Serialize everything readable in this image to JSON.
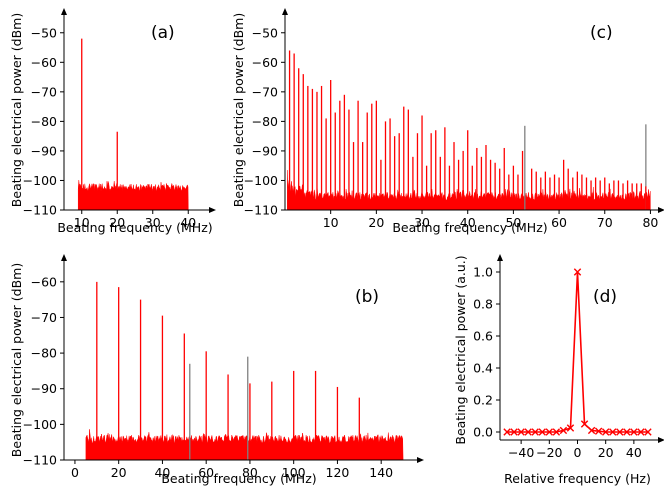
{
  "colors": {
    "trace": "#ff0000",
    "marker_line": "#808080",
    "axis": "#000000"
  },
  "chart_data": [
    {
      "id": "a",
      "type": "line",
      "panel_label": "(a)",
      "xlabel": "Beating frequency (MHz)",
      "ylabel": "Beating electrical power (dBm)",
      "xlim": [
        5,
        45
      ],
      "ylim": [
        -110,
        -45
      ],
      "xticks": [
        10,
        20,
        30,
        40
      ],
      "yticks": [
        -110,
        -100,
        -90,
        -80,
        -70,
        -60,
        -50
      ],
      "noise": {
        "x_start": 9,
        "x_end": 40,
        "level_top": -101
      },
      "series": [
        {
          "name": "peaks",
          "x": [
            10,
            20
          ],
          "y": [
            -52,
            -83.5
          ]
        }
      ],
      "gray_lines": []
    },
    {
      "id": "c",
      "type": "line",
      "panel_label": "(c)",
      "xlabel": "Beating frequency (MHz)",
      "ylabel": "Beating electrical power (dBm)",
      "xlim": [
        0,
        81
      ],
      "ylim": [
        -110,
        -45
      ],
      "xticks": [
        10,
        20,
        30,
        40,
        50,
        60,
        70,
        80
      ],
      "yticks": [
        -110,
        -100,
        -90,
        -80,
        -70,
        -60,
        -50
      ],
      "noise": {
        "x_start": 0.5,
        "x_end": 80,
        "level_top": -104
      },
      "series": [
        {
          "name": "peaks",
          "x": [
            1,
            2,
            3,
            4,
            5,
            6,
            7,
            8,
            9,
            10,
            11,
            12,
            13,
            14,
            15,
            16,
            17,
            18,
            19,
            20,
            21,
            22,
            23,
            24,
            25,
            26,
            27,
            28,
            29,
            30,
            31,
            32,
            33,
            34,
            35,
            36,
            37,
            38,
            39,
            40,
            41,
            42,
            43,
            44,
            45,
            46,
            47,
            48,
            49,
            50,
            51,
            52,
            54,
            55,
            56,
            57,
            58,
            59,
            60,
            61,
            62,
            63,
            64,
            65,
            66,
            67,
            68,
            69,
            70,
            71,
            72,
            73,
            74,
            75,
            76,
            77,
            78,
            79
          ],
          "y": [
            -56,
            -57,
            -62,
            -64,
            -68,
            -69,
            -70,
            -68,
            -79,
            -66,
            -77,
            -73,
            -71,
            -76,
            -87,
            -73,
            -87,
            -77,
            -74,
            -73,
            -93,
            -80,
            -79,
            -85,
            -84,
            -75,
            -76,
            -92,
            -84,
            -78,
            -95,
            -84,
            -83,
            -92,
            -82,
            -95,
            -87,
            -93,
            -90,
            -83,
            -95,
            -89,
            -92,
            -88,
            -93,
            -94,
            -96,
            -89,
            -98,
            -95,
            -98,
            -90,
            -96,
            -97,
            -99,
            -97,
            -99,
            -98,
            -99,
            -93,
            -96,
            -99,
            -97,
            -98,
            -99,
            -100,
            -99,
            -100,
            -99,
            -101,
            -100,
            -100,
            -101,
            -100,
            -101,
            -101,
            -101,
            -102
          ]
        }
      ],
      "gray_lines": [
        {
          "x": 52.5,
          "y": -81.5
        },
        {
          "x": 79,
          "y": -81
        }
      ]
    },
    {
      "id": "b",
      "type": "line",
      "panel_label": "(b)",
      "xlabel": "Beating frequency (MHz)",
      "ylabel": "Beating electrical power (dBm)",
      "xlim": [
        -5,
        155
      ],
      "ylim": [
        -110,
        -55
      ],
      "xticks": [
        0,
        20,
        40,
        60,
        80,
        100,
        120,
        140
      ],
      "yticks": [
        -110,
        -100,
        -90,
        -80,
        -70,
        -60
      ],
      "noise": {
        "x_start": 5,
        "x_end": 150,
        "level_top": -103
      },
      "series": [
        {
          "name": "peaks",
          "x": [
            10,
            20,
            30,
            40,
            50,
            60,
            70,
            80,
            90,
            100,
            110,
            120,
            130
          ],
          "y": [
            -60,
            -61.5,
            -65,
            -69.5,
            -74.5,
            -79.5,
            -86,
            -88.5,
            -88,
            -85,
            -85,
            -89.5,
            -92.5
          ]
        }
      ],
      "gray_lines": [
        {
          "x": 52.5,
          "y": -83
        },
        {
          "x": 79,
          "y": -81
        }
      ]
    },
    {
      "id": "d",
      "type": "line",
      "panel_label": "(d)",
      "xlabel": "Relative frequency (Hz)",
      "ylabel": "Beating electrical power (a.u.)",
      "xlim": [
        -55,
        55
      ],
      "ylim": [
        -0.05,
        1.05
      ],
      "xticks": [
        -40,
        -20,
        0,
        20,
        40
      ],
      "yticks": [
        0.0,
        0.2,
        0.4,
        0.6,
        0.8,
        1.0
      ],
      "series": [
        {
          "name": "spectrum",
          "x": [
            -50,
            -45,
            -40,
            -35,
            -30,
            -25,
            -20,
            -15,
            -10,
            -5,
            0,
            5,
            10,
            15,
            20,
            25,
            30,
            35,
            40,
            45,
            50
          ],
          "y": [
            0.0,
            0.0,
            0.0,
            0.0,
            0.0,
            0.0,
            0.0,
            0.0,
            0.01,
            0.025,
            1.0,
            0.05,
            0.01,
            0.005,
            0.0,
            0.0,
            0.0,
            0.0,
            0.0,
            0.0,
            0.0
          ],
          "markers": "x"
        }
      ],
      "gray_lines": []
    }
  ]
}
